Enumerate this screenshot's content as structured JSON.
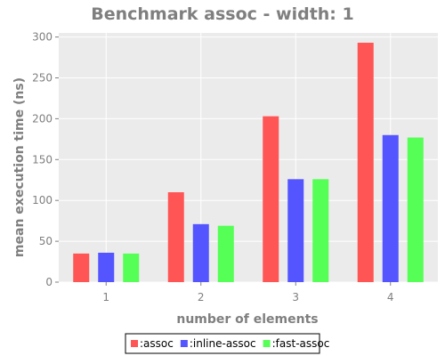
{
  "chart_data": {
    "type": "bar",
    "title": "Benchmark assoc - width: 1",
    "xlabel": "number of elements",
    "ylabel": "mean execution time (ns)",
    "categories": [
      "1",
      "2",
      "3",
      "4"
    ],
    "ylim": [
      0,
      305
    ],
    "yticks": [
      0,
      50,
      100,
      150,
      200,
      250,
      300
    ],
    "grid": true,
    "legend_position": "bottom",
    "series": [
      {
        "name": ":assoc",
        "color": "#ff5555",
        "values": [
          35,
          110,
          203,
          293
        ]
      },
      {
        "name": ":inline-assoc",
        "color": "#5555ff",
        "values": [
          36,
          71,
          126,
          180
        ]
      },
      {
        "name": ":fast-assoc",
        "color": "#55ff55",
        "values": [
          35,
          69,
          126,
          177
        ]
      }
    ]
  }
}
